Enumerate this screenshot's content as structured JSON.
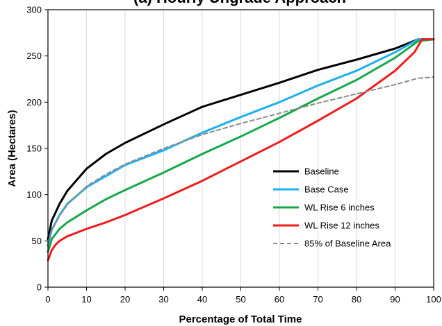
{
  "chart_data": {
    "type": "line",
    "title": "(a) Hourly Ungrade Approach",
    "xlabel": "Percentage of Total Time",
    "ylabel": "Area (Hectares)",
    "xlim": [
      0,
      100
    ],
    "ylim": [
      0,
      300
    ],
    "x_ticks": [
      "0",
      "10",
      "20",
      "30",
      "40",
      "50",
      "60",
      "70",
      "80",
      "90",
      "100"
    ],
    "y_ticks": [
      "0",
      "50",
      "100",
      "150",
      "200",
      "250",
      "300"
    ],
    "grid": "vertical",
    "legend_position": "lower-right",
    "series": [
      {
        "name": "Baseline",
        "color": "#000000",
        "dash": "solid",
        "x": [
          0,
          1,
          3,
          5,
          10,
          15,
          20,
          30,
          40,
          50,
          60,
          70,
          80,
          90,
          96,
          100
        ],
        "y": [
          52,
          72,
          90,
          104,
          128,
          144,
          156,
          176,
          195,
          208,
          221,
          235,
          246,
          258,
          268,
          268
        ]
      },
      {
        "name": "Base Case",
        "color": "#1fb0ec",
        "dash": "solid",
        "x": [
          0,
          1,
          3,
          5,
          10,
          15,
          20,
          30,
          40,
          50,
          60,
          70,
          80,
          90,
          96,
          100
        ],
        "y": [
          45,
          62,
          78,
          90,
          108,
          120,
          132,
          148,
          167,
          184,
          200,
          218,
          234,
          254,
          268,
          268
        ]
      },
      {
        "name": "WL Rise 6 inches",
        "color": "#18a84a",
        "dash": "solid",
        "x": [
          0,
          1,
          3,
          5,
          10,
          15,
          20,
          30,
          40,
          50,
          60,
          70,
          80,
          90,
          96,
          100
        ],
        "y": [
          38,
          52,
          63,
          70,
          83,
          95,
          105,
          124,
          144,
          163,
          183,
          204,
          224,
          248,
          266,
          268
        ]
      },
      {
        "name": "WL Rise 12 inches",
        "color": "#ee1c1c",
        "dash": "solid",
        "x": [
          0,
          1,
          2,
          3,
          5,
          10,
          15,
          20,
          30,
          40,
          50,
          60,
          70,
          80,
          90,
          95,
          97,
          100
        ],
        "y": [
          29,
          40,
          46,
          50,
          55,
          63,
          70,
          78,
          96,
          115,
          136,
          157,
          180,
          204,
          234,
          254,
          268,
          268
        ]
      },
      {
        "name": "85% of Baseline Area",
        "color": "#8c8c8c",
        "dash": "dashed",
        "x": [
          0,
          1,
          3,
          5,
          10,
          15,
          20,
          30,
          40,
          50,
          60,
          70,
          80,
          90,
          96,
          100
        ],
        "y": [
          44,
          62,
          77,
          89,
          109,
          122,
          133,
          150,
          165,
          177,
          188,
          199,
          209,
          219,
          226,
          227
        ]
      }
    ]
  }
}
